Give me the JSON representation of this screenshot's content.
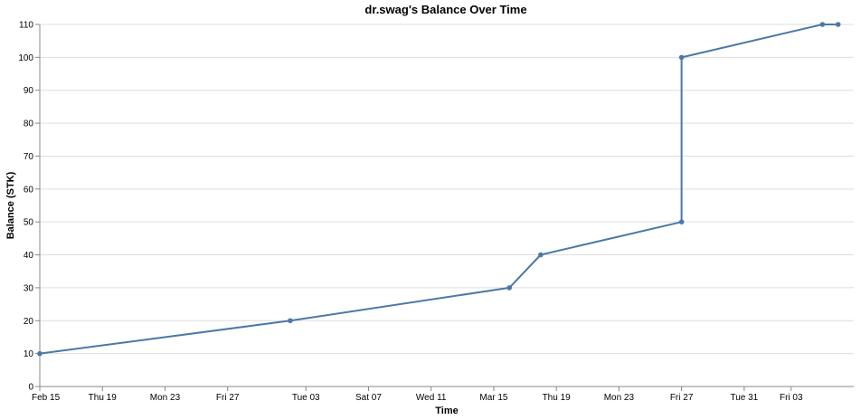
{
  "chart_data": {
    "type": "line",
    "title": "dr.swag's Balance Over Time",
    "xlabel": "Time",
    "ylabel": "Balance (STK)",
    "ylim": [
      0,
      110
    ],
    "yticks": [
      0,
      10,
      20,
      30,
      40,
      50,
      60,
      70,
      80,
      90,
      100,
      110
    ],
    "xlim": [
      "2024-02-15",
      "2024-04-07"
    ],
    "xticks": [
      {
        "date": "2024-02-15",
        "label": "Feb 15"
      },
      {
        "date": "2024-02-19",
        "label": "Thu 19"
      },
      {
        "date": "2024-02-23",
        "label": "Mon 23"
      },
      {
        "date": "2024-02-27",
        "label": "Fri 27"
      },
      {
        "date": "2024-03-03",
        "label": "Tue 03"
      },
      {
        "date": "2024-03-07",
        "label": "Sat 07"
      },
      {
        "date": "2024-03-11",
        "label": "Wed 11"
      },
      {
        "date": "2024-03-15",
        "label": "Mar 15"
      },
      {
        "date": "2024-03-19",
        "label": "Thu 19"
      },
      {
        "date": "2024-03-23",
        "label": "Mon 23"
      },
      {
        "date": "2024-03-27",
        "label": "Fri 27"
      },
      {
        "date": "2024-03-31",
        "label": "Tue 31"
      },
      {
        "date": "2024-04-03",
        "label": "Fri 03"
      }
    ],
    "grid": true,
    "color": "#4c78a8",
    "series": [
      {
        "points": [
          {
            "x": "2024-02-15",
            "y": 10
          },
          {
            "x": "2024-03-02",
            "y": 20
          },
          {
            "x": "2024-03-16",
            "y": 30
          },
          {
            "x": "2024-03-18",
            "y": 40
          },
          {
            "x": "2024-03-27",
            "y": 50
          },
          {
            "x": "2024-03-27",
            "y": 100
          },
          {
            "x": "2024-04-05",
            "y": 110
          },
          {
            "x": "2024-04-06",
            "y": 110
          }
        ]
      }
    ]
  }
}
